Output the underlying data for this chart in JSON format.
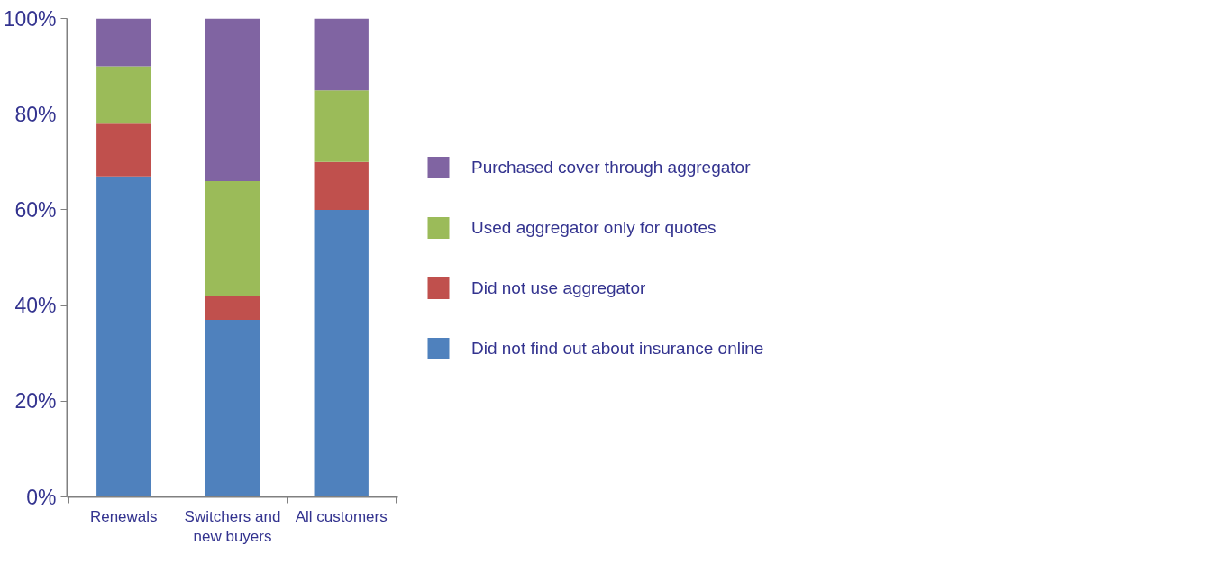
{
  "chart_data": {
    "type": "bar",
    "stacked": true,
    "categories": [
      "Renewals",
      "Switchers and new buyers",
      "All customers"
    ],
    "series": [
      {
        "name": "Did not find out about insurance online",
        "color": "#4f81bd",
        "values": [
          67,
          37,
          60
        ]
      },
      {
        "name": "Did not use aggregator",
        "color": "#c0504d",
        "values": [
          11,
          5,
          10
        ]
      },
      {
        "name": "Used aggregator only for quotes",
        "color": "#9bbb59",
        "values": [
          12,
          24,
          15
        ]
      },
      {
        "name": "Purchased cover through aggregator",
        "color": "#8064a2",
        "values": [
          10,
          34,
          15
        ]
      }
    ],
    "ylim": [
      0,
      100
    ],
    "yticks": [
      {
        "value": 0,
        "label": "0%"
      },
      {
        "value": 20,
        "label": "20%"
      },
      {
        "value": 40,
        "label": "40%"
      },
      {
        "value": 60,
        "label": "60%"
      },
      {
        "value": 80,
        "label": "80%"
      },
      {
        "value": 100,
        "label": "100%"
      }
    ],
    "grid": false,
    "legend": "right"
  }
}
